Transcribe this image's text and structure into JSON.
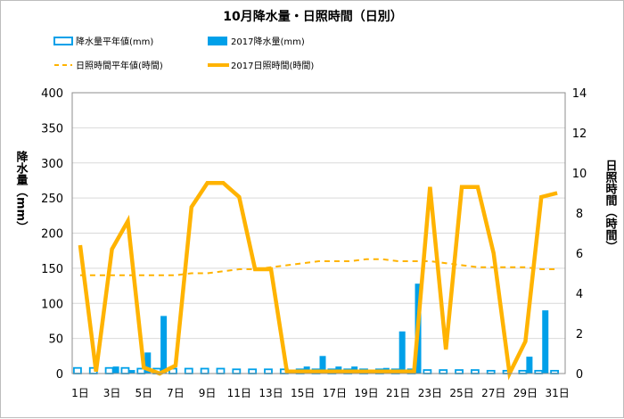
{
  "chart_data": {
    "type": "bar+line",
    "title": "10月降水量・日照時間（日別）",
    "categories": [
      1,
      2,
      3,
      4,
      5,
      6,
      7,
      8,
      9,
      10,
      11,
      12,
      13,
      14,
      15,
      16,
      17,
      18,
      19,
      20,
      21,
      22,
      23,
      24,
      25,
      26,
      27,
      28,
      29,
      30,
      31
    ],
    "x_tick_labels": [
      "1日",
      "3日",
      "5日",
      "7日",
      "9日",
      "11日",
      "13日",
      "15日",
      "17日",
      "19日",
      "21日",
      "23日",
      "25日",
      "27日",
      "29日",
      "31日"
    ],
    "ylabel_left": "降水量（mm）",
    "ylabel_right": "日照時間（時間）",
    "y_left_range": [
      0,
      400
    ],
    "y_left_ticks": [
      0,
      50,
      100,
      150,
      200,
      250,
      300,
      350,
      400
    ],
    "y_right_range": [
      0,
      14
    ],
    "y_right_ticks": [
      0,
      2,
      4,
      6,
      8,
      10,
      12,
      14
    ],
    "legend_placement": "top",
    "series": [
      {
        "name": "降水量平年値(mm)",
        "kind": "bar",
        "axis": "left",
        "style": "hollow",
        "color": "#00a0e9",
        "values": [
          8,
          8,
          8,
          8,
          7,
          7,
          7,
          7,
          7,
          7,
          6,
          6,
          6,
          6,
          6,
          6,
          6,
          6,
          6,
          6,
          6,
          6,
          5,
          5,
          5,
          5,
          4,
          4,
          4,
          4,
          4
        ]
      },
      {
        "name": "2017降水量(mm)",
        "kind": "bar",
        "axis": "left",
        "style": "solid",
        "color": "#00a0e9",
        "values": [
          0,
          0,
          10,
          5,
          30,
          82,
          0,
          0,
          0,
          0,
          0,
          0,
          0,
          0,
          10,
          25,
          10,
          10,
          5,
          8,
          60,
          128,
          0,
          0,
          0,
          0,
          0,
          0,
          24,
          90,
          0
        ]
      },
      {
        "name": "日照時間平年値(時間)",
        "kind": "line",
        "axis": "right",
        "style": "dashed",
        "color": "#ffb300",
        "values": [
          4.9,
          4.9,
          4.9,
          4.9,
          4.9,
          4.9,
          4.9,
          5.0,
          5.0,
          5.1,
          5.2,
          5.2,
          5.3,
          5.4,
          5.5,
          5.6,
          5.6,
          5.6,
          5.7,
          5.7,
          5.6,
          5.6,
          5.6,
          5.5,
          5.4,
          5.3,
          5.3,
          5.3,
          5.3,
          5.2,
          5.2
        ]
      },
      {
        "name": "2017日照時間(時間)",
        "kind": "line",
        "axis": "right",
        "style": "solid",
        "color": "#ffb300",
        "values": [
          6.4,
          0.1,
          6.2,
          7.6,
          0.3,
          0.0,
          0.4,
          8.3,
          9.5,
          9.5,
          8.8,
          5.2,
          5.2,
          0.1,
          0.1,
          0.1,
          0.1,
          0.1,
          0.1,
          0.1,
          0.1,
          0.1,
          9.3,
          1.2,
          9.3,
          9.3,
          6.0,
          0.0,
          1.6,
          8.8,
          9.0
        ]
      }
    ]
  }
}
